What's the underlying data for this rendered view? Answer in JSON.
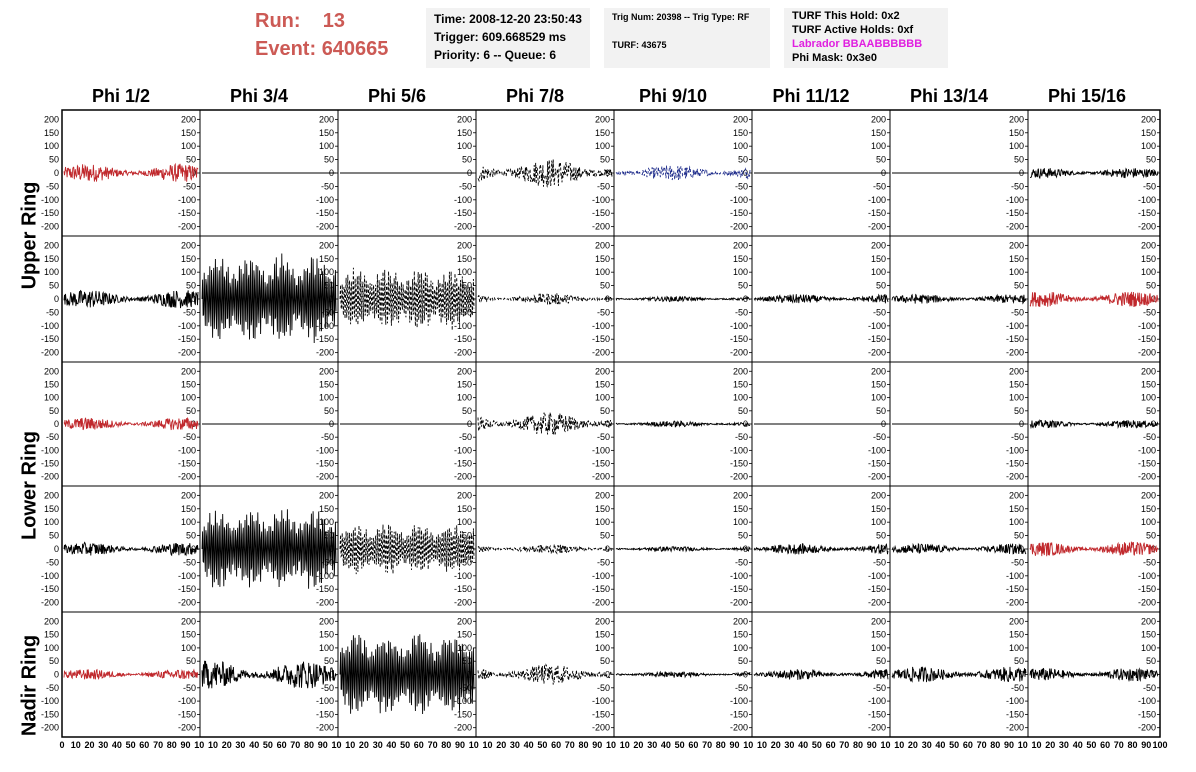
{
  "header": {
    "run_label": "Run:",
    "run_value": "13",
    "event_label": "Event:",
    "event_value": "640665",
    "time_text": "Time: 2008-12-20 23:50:43",
    "trigger_text": "Trigger: 609.668529 ms",
    "priority_text": "Priority: 6 -- Queue: 6",
    "trig_num_text": "Trig Num: 20398 -- Trig Type: RF",
    "turf_text": "TURF: 43675",
    "turf_this_hold": "TURF This Hold: 0x2",
    "turf_active_holds": "TURF Active Holds: 0xf",
    "labrador_text": "Labrador BBAABBBBBB",
    "phi_mask_text": "Phi Mask: 0x3e0"
  },
  "colors": {
    "run_color": "#cc5a55",
    "labrador_color": "#e020e0",
    "trace_red": "#c0282c",
    "trace_blue": "#1c2a8a",
    "trace_black": "#000000"
  },
  "phi_headers": [
    "Phi 1/2",
    "Phi 3/4",
    "Phi 5/6",
    "Phi 7/8",
    "Phi 9/10",
    "Phi 11/12",
    "Phi 13/14",
    "Phi 15/16"
  ],
  "ring_labels": [
    "Upper Ring",
    "Lower Ring",
    "Nadir Ring"
  ],
  "y_ticks": [
    "200",
    "150",
    "100",
    "50",
    "0",
    "-50",
    "-100",
    "-150",
    "-200"
  ],
  "x_ticks": [
    "0",
    "10",
    "20",
    "30",
    "40",
    "50",
    "60",
    "70",
    "80",
    "90",
    "100"
  ],
  "x_ticks_display": [
    "0",
    "10",
    "20",
    "30",
    "40",
    "50",
    "60",
    "70",
    "80",
    "90",
    "10",
    "10",
    "20",
    "30",
    "40",
    "50",
    "60",
    "70",
    "80",
    "90",
    "10",
    "10",
    "20",
    "30",
    "40",
    "50",
    "60",
    "70",
    "80",
    "90",
    "10",
    "10",
    "20",
    "30",
    "40",
    "50",
    "60",
    "70",
    "80",
    "90",
    "10",
    "10",
    "20",
    "30",
    "40",
    "50",
    "60",
    "70",
    "80",
    "90",
    "10",
    "10",
    "20",
    "30",
    "40",
    "50",
    "60",
    "70",
    "80",
    "90",
    "10",
    "10",
    "20",
    "30",
    "40",
    "50",
    "60",
    "70",
    "80",
    "90",
    "10",
    "10",
    "20",
    "30",
    "40",
    "50",
    "60",
    "70",
    "80",
    "90",
    "100"
  ],
  "traces": [
    [
      {
        "c": "red",
        "a": 35,
        "s": "noisy"
      },
      {
        "c": "black",
        "a": 0,
        "s": "flat"
      },
      {
        "c": "black",
        "a": 0,
        "s": "flat"
      },
      {
        "c": "black",
        "a": 55,
        "s": "dashed"
      },
      {
        "c": "blue",
        "a": 30,
        "s": "dashed"
      },
      {
        "c": "black",
        "a": 0,
        "s": "flat"
      },
      {
        "c": "black",
        "a": 0,
        "s": "flat"
      },
      {
        "c": "black",
        "a": 20,
        "s": "noisy"
      }
    ],
    [
      {
        "c": "black",
        "a": 35,
        "s": "noisy"
      },
      {
        "c": "black",
        "a": 170,
        "s": "burst"
      },
      {
        "c": "black",
        "a": 120,
        "s": "dashedburst"
      },
      {
        "c": "black",
        "a": 22,
        "s": "dashed"
      },
      {
        "c": "black",
        "a": 10,
        "s": "noisy"
      },
      {
        "c": "black",
        "a": 18,
        "s": "noisy"
      },
      {
        "c": "black",
        "a": 18,
        "s": "noisy"
      },
      {
        "c": "red",
        "a": 30,
        "s": "noisy"
      }
    ],
    [
      {
        "c": "red",
        "a": 25,
        "s": "noisy"
      },
      {
        "c": "black",
        "a": 0,
        "s": "flat"
      },
      {
        "c": "black",
        "a": 0,
        "s": "flat"
      },
      {
        "c": "black",
        "a": 45,
        "s": "dashed"
      },
      {
        "c": "black",
        "a": 12,
        "s": "noisy"
      },
      {
        "c": "black",
        "a": 0,
        "s": "flat"
      },
      {
        "c": "black",
        "a": 0,
        "s": "flat"
      },
      {
        "c": "black",
        "a": 15,
        "s": "noisy"
      }
    ],
    [
      {
        "c": "black",
        "a": 25,
        "s": "noisy"
      },
      {
        "c": "black",
        "a": 160,
        "s": "burst"
      },
      {
        "c": "black",
        "a": 100,
        "s": "dashedburst"
      },
      {
        "c": "black",
        "a": 18,
        "s": "dashed"
      },
      {
        "c": "black",
        "a": 10,
        "s": "noisy"
      },
      {
        "c": "black",
        "a": 20,
        "s": "noisy"
      },
      {
        "c": "black",
        "a": 20,
        "s": "noisy"
      },
      {
        "c": "red",
        "a": 28,
        "s": "noisy"
      }
    ],
    [
      {
        "c": "red",
        "a": 20,
        "s": "noisy"
      },
      {
        "c": "black",
        "a": 55,
        "s": "noisy"
      },
      {
        "c": "black",
        "a": 170,
        "s": "burst"
      },
      {
        "c": "black",
        "a": 40,
        "s": "dashed"
      },
      {
        "c": "black",
        "a": 12,
        "s": "noisy"
      },
      {
        "c": "black",
        "a": 20,
        "s": "noisy"
      },
      {
        "c": "black",
        "a": 30,
        "s": "noisy"
      },
      {
        "c": "black",
        "a": 25,
        "s": "noisy"
      }
    ]
  ]
}
